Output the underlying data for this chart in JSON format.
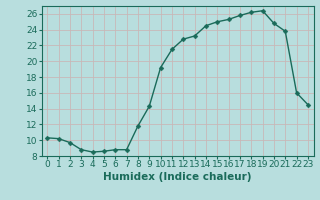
{
  "x_values": [
    0,
    1,
    2,
    3,
    4,
    5,
    6,
    7,
    8,
    9,
    10,
    11,
    12,
    13,
    14,
    15,
    16,
    17,
    18,
    19,
    20,
    21,
    22,
    23
  ],
  "y_values": [
    10.3,
    10.2,
    9.7,
    8.8,
    8.5,
    8.6,
    8.8,
    8.8,
    11.8,
    14.3,
    19.2,
    21.5,
    22.8,
    23.2,
    24.5,
    25.0,
    25.3,
    25.8,
    26.2,
    26.4,
    24.8,
    23.8,
    16.0,
    14.5
  ],
  "line_color": "#1a6b5a",
  "marker": "D",
  "marker_size": 2.5,
  "bg_color": "#b8dede",
  "grid_color": "#c8b8b8",
  "xlabel": "Humidex (Indice chaleur)",
  "xlim": [
    -0.5,
    23.5
  ],
  "ylim": [
    8,
    27
  ],
  "yticks": [
    8,
    10,
    12,
    14,
    16,
    18,
    20,
    22,
    24,
    26
  ],
  "xticks": [
    0,
    1,
    2,
    3,
    4,
    5,
    6,
    7,
    8,
    9,
    10,
    11,
    12,
    13,
    14,
    15,
    16,
    17,
    18,
    19,
    20,
    21,
    22,
    23
  ],
  "font_color": "#1a6b5a",
  "tick_fontsize": 6.5,
  "xlabel_fontsize": 7.5,
  "linewidth": 1.0
}
